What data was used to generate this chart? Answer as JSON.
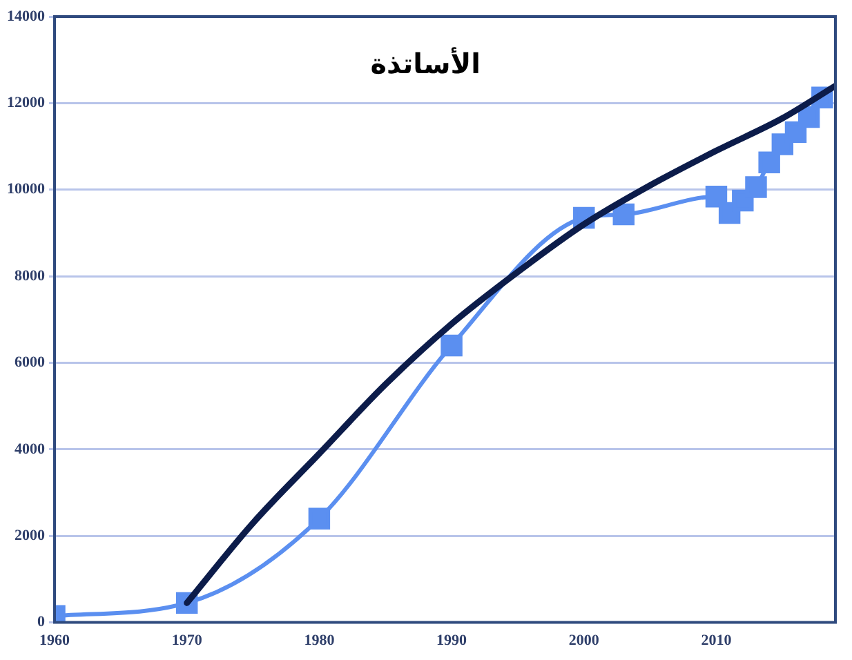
{
  "chart_data": {
    "type": "line",
    "title": "الأساتذة",
    "marker": "square",
    "grid": "y",
    "legend": false,
    "xlim": [
      1960,
      2019
    ],
    "xticks": [
      1960,
      1970,
      1980,
      1990,
      2000,
      2010
    ],
    "ylim": [
      0,
      14000
    ],
    "yticks": [
      0,
      2000,
      4000,
      6000,
      8000,
      10000,
      12000,
      14000
    ],
    "series": [
      {
        "color": "#5b8ff0",
        "x": [
          1960,
          1970,
          1980,
          1990,
          2000,
          2003,
          2010,
          2011,
          2012,
          2013,
          2014,
          2015,
          2016,
          2017,
          2018
        ],
        "values": [
          150,
          450,
          2400,
          6400,
          9350,
          9430,
          9840,
          9460,
          9750,
          10060,
          10630,
          11050,
          11330,
          11680,
          12130
        ]
      },
      {
        "color": "#0c1c4a",
        "marker": "none",
        "x": [
          1970,
          1975,
          1980,
          1985,
          1990,
          1995,
          2000,
          2005,
          2010,
          2015,
          2019
        ],
        "values": [
          450,
          2300,
          3900,
          5500,
          6900,
          8100,
          9200,
          10100,
          10900,
          11650,
          12400
        ]
      }
    ]
  }
}
